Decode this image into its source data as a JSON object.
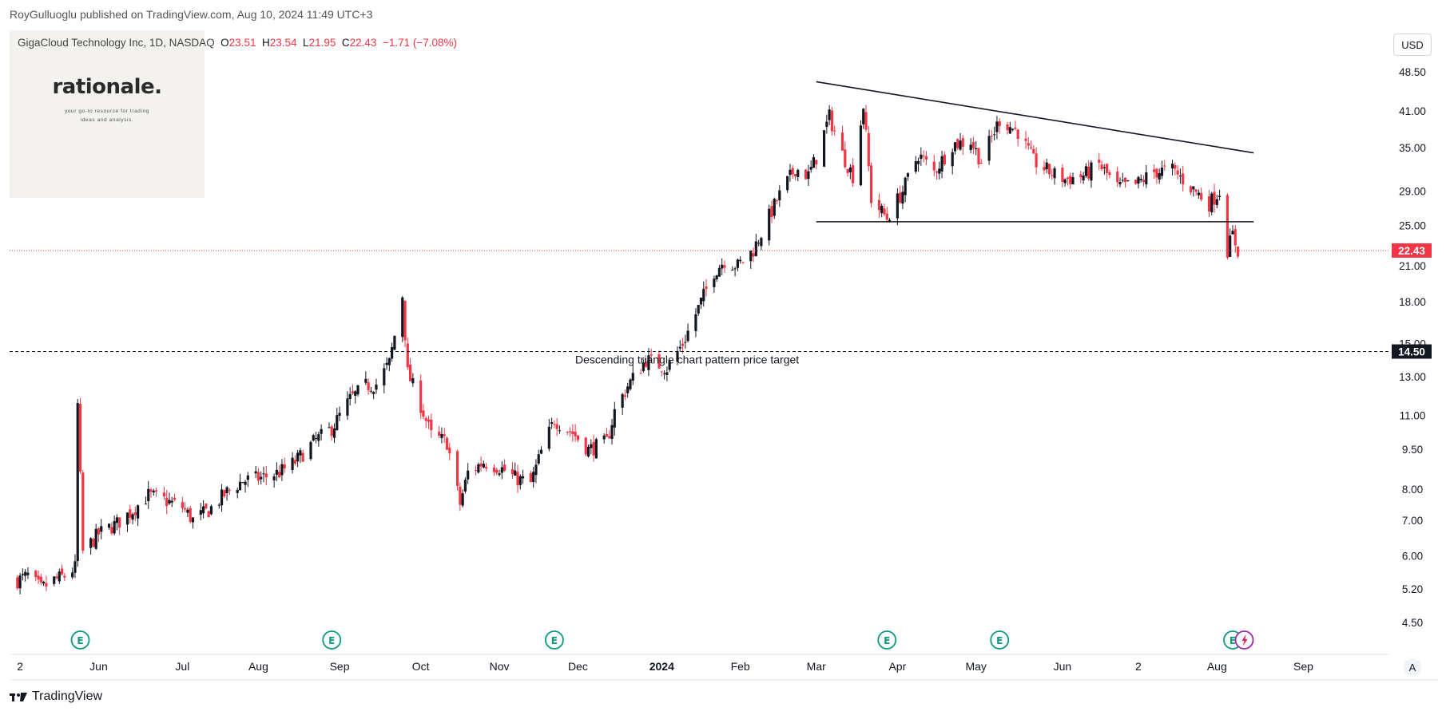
{
  "header": {
    "published_line": "RoyGulluoglu published on TradingView.com, Aug 10, 2024 11:49 UTC+3"
  },
  "logo": {
    "name": "rationale.",
    "tagline": "your go-to resource for trading ideas and analysis."
  },
  "legend": {
    "symbol": "GigaCloud Technology Inc, 1D, NASDAQ",
    "o_label": "O",
    "o_value": "23.51",
    "h_label": "H",
    "h_value": "23.54",
    "l_label": "L",
    "l_value": "21.95",
    "c_label": "C",
    "c_value": "22.43",
    "change": "−1.71 (−7.08%)"
  },
  "currency_button": "USD",
  "footer": {
    "brand": "TradingView"
  },
  "colors": {
    "up": "#131722",
    "down": "#f23645",
    "price_line": "#f23645",
    "target_line": "#131722"
  },
  "chart_data": {
    "type": "candlestick",
    "scale": "log",
    "ylim": [
      4.2,
      52
    ],
    "y_ticks": [
      "48.50",
      "41.00",
      "35.00",
      "29.00",
      "25.00",
      "21.00",
      "18.00",
      "15.00",
      "13.00",
      "11.00",
      "9.50",
      "8.00",
      "7.00",
      "6.00",
      "5.20",
      "4.50"
    ],
    "x_ticks": [
      "2",
      "Jun",
      "Jul",
      "Aug",
      "Sep",
      "Oct",
      "Nov",
      "Dec",
      "2024",
      "Feb",
      "Mar",
      "Apr",
      "May",
      "Jun",
      "2",
      "Aug",
      "Sep"
    ],
    "scale_mode_button": "A",
    "last_price_label": "22.43",
    "target_label": "14.50",
    "annotation": "Descending triangle chart pattern price target",
    "price_path": [
      [
        "2023-05-01",
        5.4
      ],
      [
        "2023-05-05",
        5.5
      ],
      [
        "2023-05-10",
        5.2
      ],
      [
        "2023-05-15",
        5.4
      ],
      [
        "2023-05-19",
        5.5
      ],
      [
        "2023-05-23",
        5.7
      ],
      [
        "2023-05-24",
        11.5
      ],
      [
        "2023-05-26",
        6.1
      ],
      [
        "2023-06-01",
        6.6
      ],
      [
        "2023-06-08",
        6.9
      ],
      [
        "2023-06-14",
        7.3
      ],
      [
        "2023-06-20",
        7.8
      ],
      [
        "2023-06-27",
        7.6
      ],
      [
        "2023-07-03",
        7.4
      ],
      [
        "2023-07-07",
        7.0
      ],
      [
        "2023-07-13",
        7.3
      ],
      [
        "2023-07-20",
        7.9
      ],
      [
        "2023-07-26",
        8.3
      ],
      [
        "2023-08-02",
        8.4
      ],
      [
        "2023-08-09",
        8.6
      ],
      [
        "2023-08-15",
        9.0
      ],
      [
        "2023-08-22",
        9.8
      ],
      [
        "2023-08-29",
        10.4
      ],
      [
        "2023-09-05",
        11.8
      ],
      [
        "2023-09-11",
        12.5
      ],
      [
        "2023-09-15",
        12.6
      ],
      [
        "2023-09-20",
        13.8
      ],
      [
        "2023-09-25",
        18.5
      ],
      [
        "2023-09-27",
        13.2
      ],
      [
        "2023-10-02",
        11.5
      ],
      [
        "2023-10-06",
        10.1
      ],
      [
        "2023-10-12",
        9.8
      ],
      [
        "2023-10-17",
        7.5
      ],
      [
        "2023-10-20",
        8.6
      ],
      [
        "2023-10-26",
        9.0
      ],
      [
        "2023-11-01",
        8.8
      ],
      [
        "2023-11-07",
        8.4
      ],
      [
        "2023-11-13",
        8.2
      ],
      [
        "2023-11-17",
        9.4
      ],
      [
        "2023-11-22",
        10.8
      ],
      [
        "2023-11-29",
        10.2
      ],
      [
        "2023-12-05",
        9.5
      ],
      [
        "2023-12-12",
        9.8
      ],
      [
        "2023-12-15",
        11.2
      ],
      [
        "2023-12-20",
        12.5
      ],
      [
        "2023-12-27",
        14.0
      ],
      [
        "2024-01-04",
        13.5
      ],
      [
        "2024-01-10",
        15.0
      ],
      [
        "2024-01-16",
        17.5
      ],
      [
        "2024-01-22",
        20.5
      ],
      [
        "2024-01-26",
        21.5
      ],
      [
        "2024-01-31",
        21.0
      ],
      [
        "2024-02-06",
        22.5
      ],
      [
        "2024-02-12",
        26.0
      ],
      [
        "2024-02-16",
        28.5
      ],
      [
        "2024-02-22",
        32.0
      ],
      [
        "2024-02-27",
        31.0
      ],
      [
        "2024-03-01",
        33.5
      ],
      [
        "2024-03-06",
        40.0
      ],
      [
        "2024-03-11",
        34.0
      ],
      [
        "2024-03-15",
        31.0
      ],
      [
        "2024-03-19",
        42.0
      ],
      [
        "2024-03-22",
        28.0
      ],
      [
        "2024-03-28",
        25.8
      ],
      [
        "2024-04-03",
        29.0
      ],
      [
        "2024-04-09",
        34.0
      ],
      [
        "2024-04-15",
        31.5
      ],
      [
        "2024-04-22",
        35.5
      ],
      [
        "2024-04-29",
        36.0
      ],
      [
        "2024-05-03",
        33.0
      ],
      [
        "2024-05-10",
        39.5
      ],
      [
        "2024-05-17",
        37.5
      ],
      [
        "2024-05-23",
        33.0
      ],
      [
        "2024-05-29",
        31.5
      ],
      [
        "2024-06-04",
        30.5
      ],
      [
        "2024-06-11",
        31.0
      ],
      [
        "2024-06-17",
        32.5
      ],
      [
        "2024-06-24",
        29.5
      ],
      [
        "2024-07-01",
        29.8
      ],
      [
        "2024-07-08",
        31.5
      ],
      [
        "2024-07-15",
        31.8
      ],
      [
        "2024-07-22",
        29.5
      ],
      [
        "2024-07-29",
        27.5
      ],
      [
        "2024-08-02",
        29.0
      ],
      [
        "2024-08-05",
        22.5
      ],
      [
        "2024-08-07",
        24.0
      ],
      [
        "2024-08-09",
        22.43
      ]
    ],
    "annotations": [
      {
        "type": "trendline",
        "name": "resistance",
        "points": [
          [
            "2024-03-01",
            46.5
          ],
          [
            "2024-08-15",
            34.2
          ]
        ]
      },
      {
        "type": "trendline",
        "name": "support",
        "points": [
          [
            "2024-03-01",
            25.4
          ],
          [
            "2024-08-15",
            25.4
          ]
        ]
      },
      {
        "type": "hline",
        "name": "price-target",
        "value": 14.5
      }
    ],
    "earnings_markers": [
      "2023-05-25",
      "2023-08-29",
      "2023-11-22",
      "2024-03-28",
      "2024-05-10",
      "2024-08-07"
    ],
    "dividend_marker": "2024-08-09"
  }
}
